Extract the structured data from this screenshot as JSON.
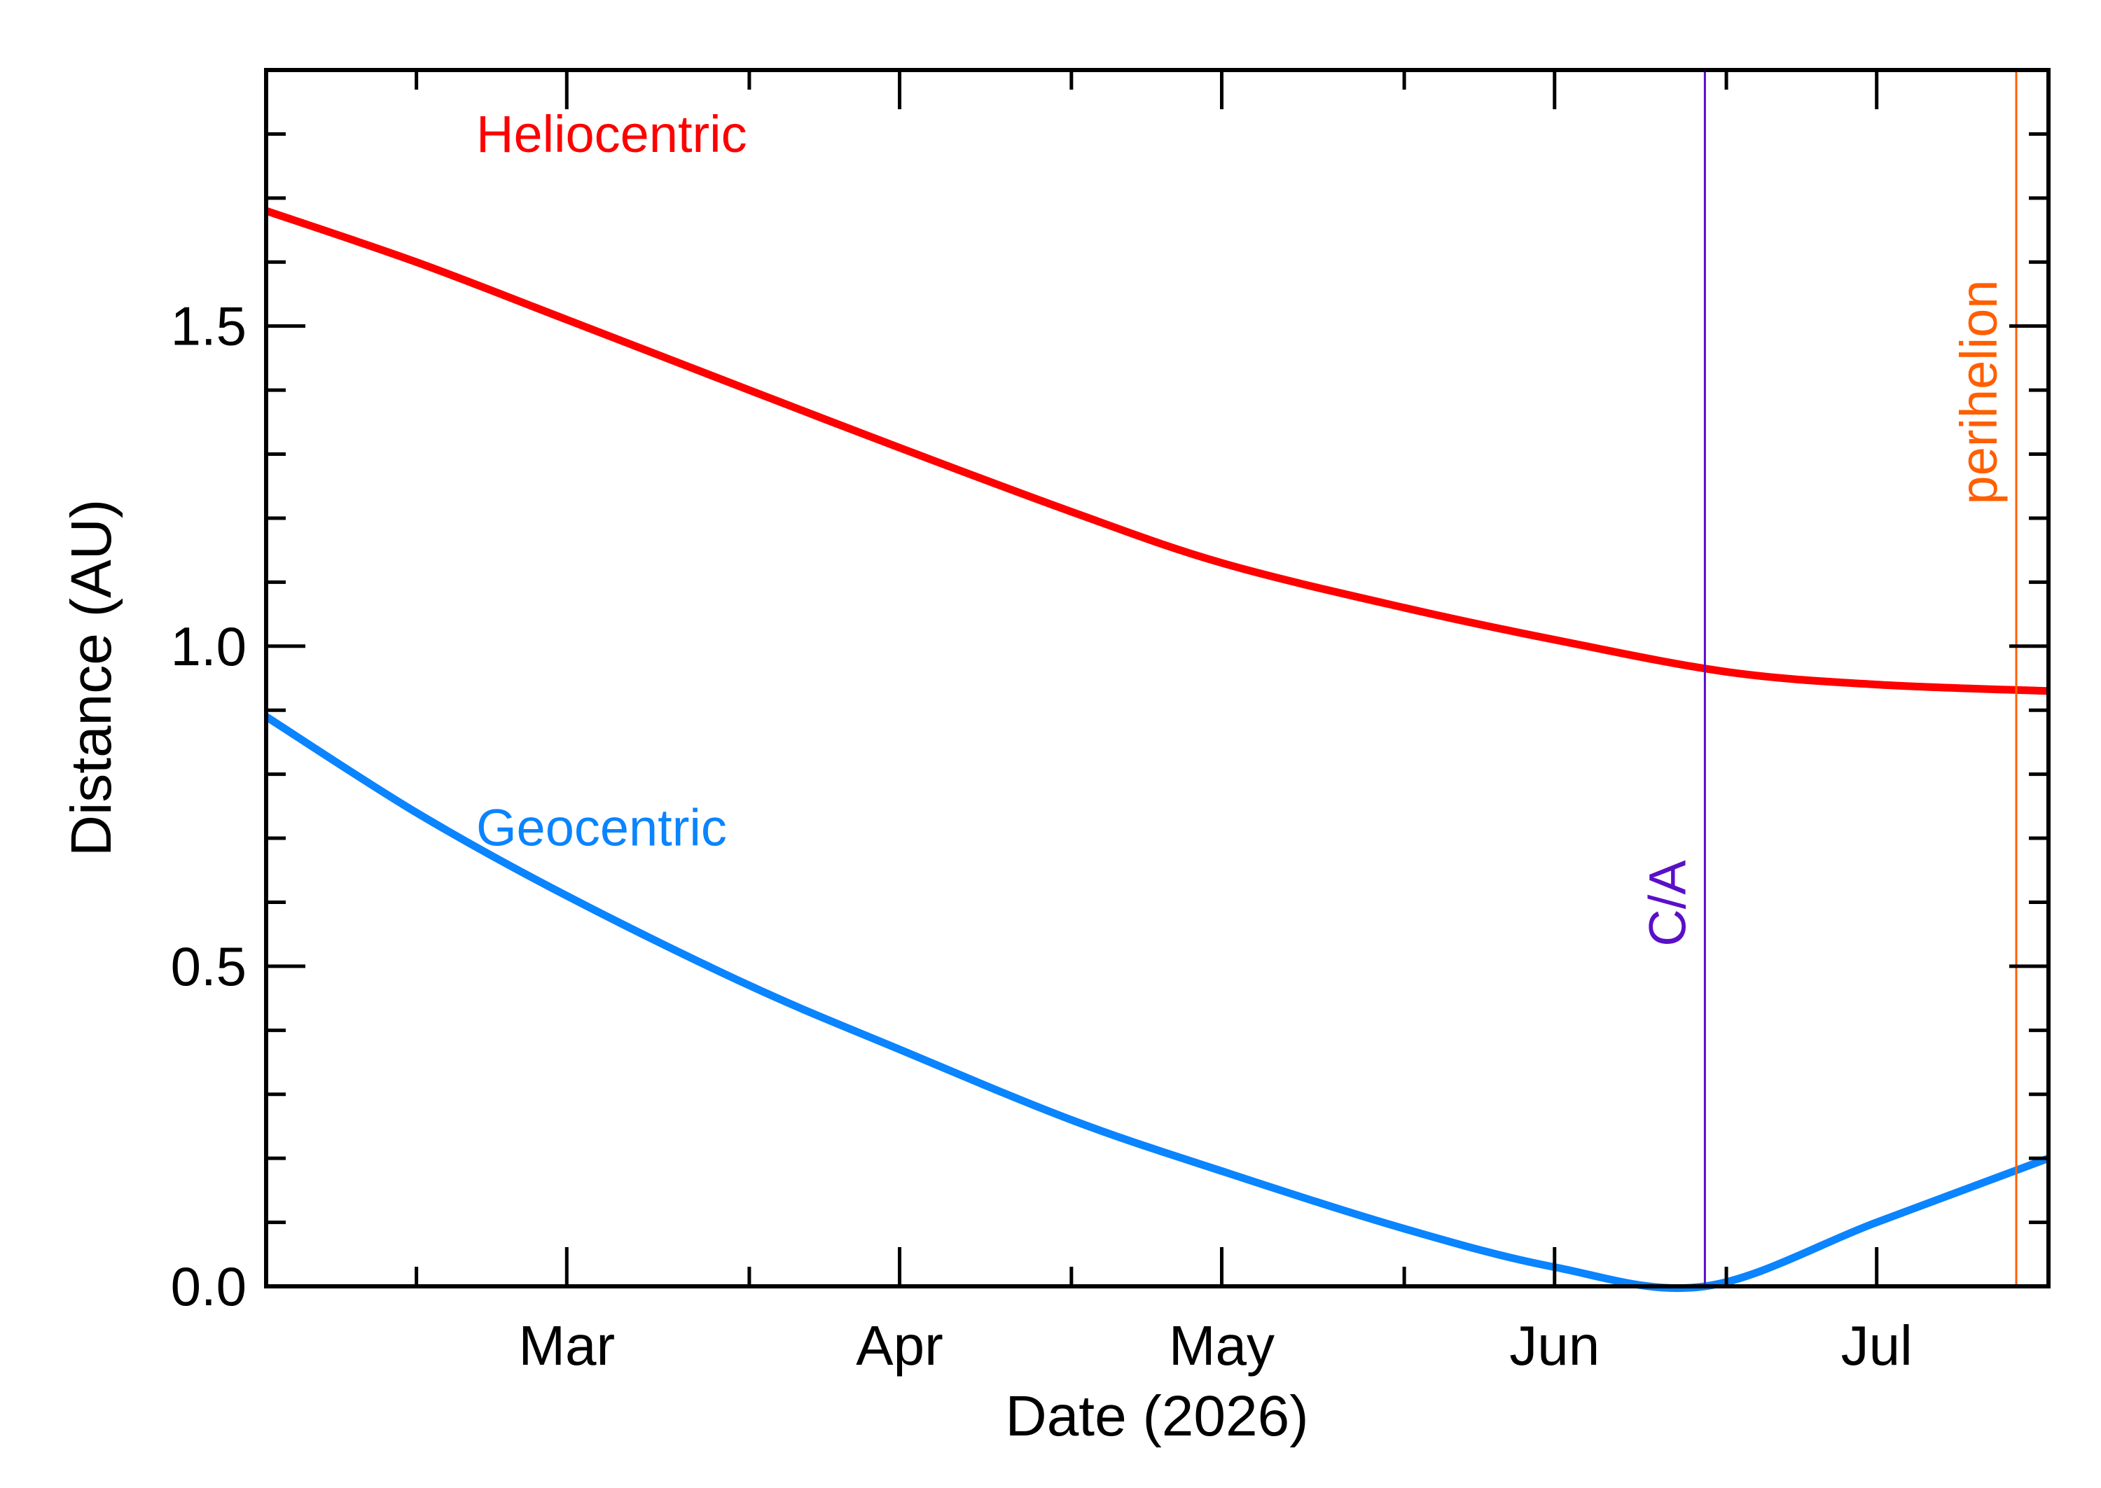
{
  "chart_data": {
    "type": "line",
    "xlabel": "Date (2026)",
    "ylabel": "Distance (AU)",
    "x_range": [
      "2026-02-15",
      "2026-07-31"
    ],
    "ylim": [
      0.0,
      1.9
    ],
    "x_ticks": [
      {
        "date": "2026-03-01",
        "label": "Mar"
      },
      {
        "date": "2026-04-01",
        "label": "Apr"
      },
      {
        "date": "2026-05-01",
        "label": "May"
      },
      {
        "date": "2026-06-01",
        "label": "Jun"
      },
      {
        "date": "2026-07-01",
        "label": "Jul"
      }
    ],
    "y_ticks": [
      {
        "value": 0.0,
        "label": "0.0"
      },
      {
        "value": 0.5,
        "label": "0.5"
      },
      {
        "value": 1.0,
        "label": "1.0"
      },
      {
        "value": 1.5,
        "label": "1.5"
      }
    ],
    "grid": false,
    "series": [
      {
        "name": "Heliocentric",
        "color": "#ff0000",
        "points": [
          [
            "2026-02-15",
            1.68
          ],
          [
            "2026-03-01",
            1.6
          ],
          [
            "2026-03-15",
            1.51
          ],
          [
            "2026-04-01",
            1.4
          ],
          [
            "2026-04-15",
            1.31
          ],
          [
            "2026-05-01",
            1.21
          ],
          [
            "2026-05-15",
            1.13
          ],
          [
            "2026-06-01",
            1.06
          ],
          [
            "2026-06-15",
            1.01
          ],
          [
            "2026-07-01",
            0.96
          ],
          [
            "2026-07-15",
            0.94
          ],
          [
            "2026-07-31",
            0.93
          ]
        ]
      },
      {
        "name": "Geocentric",
        "color": "#0a84ff",
        "points": [
          [
            "2026-02-15",
            0.89
          ],
          [
            "2026-03-01",
            0.74
          ],
          [
            "2026-03-15",
            0.61
          ],
          [
            "2026-04-01",
            0.47
          ],
          [
            "2026-04-15",
            0.37
          ],
          [
            "2026-05-01",
            0.26
          ],
          [
            "2026-05-15",
            0.18
          ],
          [
            "2026-06-01",
            0.09
          ],
          [
            "2026-06-15",
            0.03
          ],
          [
            "2026-06-29",
            0.0
          ],
          [
            "2026-07-15",
            0.1
          ],
          [
            "2026-07-31",
            0.2
          ]
        ]
      }
    ],
    "vlines": [
      {
        "label": "C/A",
        "date": "2026-06-29",
        "color": "#5a0fc8"
      },
      {
        "label": "perihelion",
        "date": "2026-07-28",
        "color": "#ff5f00"
      }
    ]
  }
}
